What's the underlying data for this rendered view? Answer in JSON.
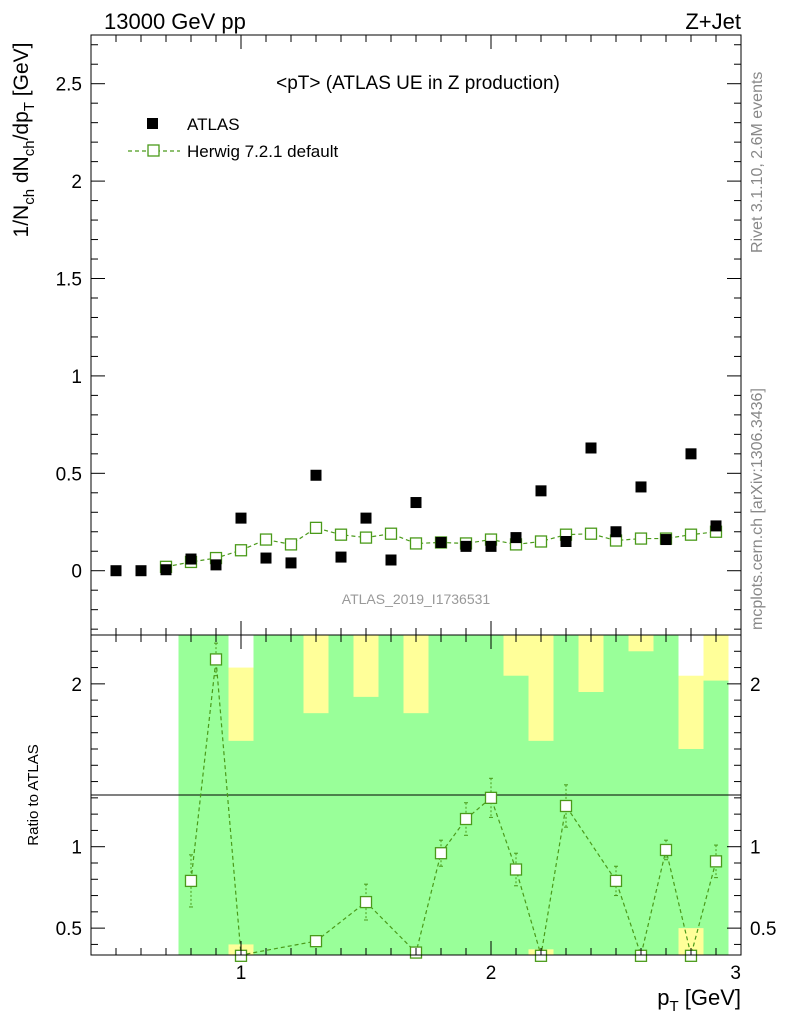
{
  "header": {
    "left": "13000 GeV pp",
    "right": "Z+Jet"
  },
  "side_labels": {
    "top": "Rivet 3.1.10,  2.6M events",
    "bottom": "mcplots.cern.ch [arXiv:1306.3436]"
  },
  "colors": {
    "mc": "#4a9a1a",
    "band_inner": "#99ff99",
    "band_outer": "#ffff99",
    "data": "#000000"
  },
  "chart_data": [
    {
      "type": "scatter",
      "panel": "main",
      "title": "<pT> (ATLAS UE in Z production)",
      "analysis": "ATLAS_2019_I1736531",
      "ylabel_main": "1/N",
      "ylabel_sub1": "ch",
      "ylabel_mid": " dN",
      "ylabel_sub2": "ch",
      "ylabel_mid2": "/dp",
      "ylabel_sub3": "T",
      "ylabel_tail": " [GeV]",
      "xlim": [
        0.4,
        3.0
      ],
      "ylim": [
        -0.33,
        2.75
      ],
      "yticks": [
        0,
        0.5,
        1,
        1.5,
        2,
        2.5
      ],
      "ytick_labels": [
        "0",
        "0.5",
        "1",
        "1.5",
        "2",
        "2.5"
      ],
      "legend_placement": "top-left",
      "series": [
        {
          "name": "ATLAS",
          "marker": "filled-square",
          "x": [
            0.5,
            0.6,
            0.7,
            0.8,
            0.9,
            1.0,
            1.1,
            1.2,
            1.3,
            1.4,
            1.5,
            1.6,
            1.7,
            1.8,
            1.9,
            2.0,
            2.1,
            2.2,
            2.3,
            2.4,
            2.5,
            2.6,
            2.7,
            2.8,
            2.9
          ],
          "y": [
            0.0,
            0.0,
            0.005,
            0.06,
            0.03,
            0.27,
            0.065,
            0.04,
            0.49,
            0.07,
            0.27,
            0.055,
            0.35,
            0.145,
            0.125,
            0.125,
            0.17,
            0.41,
            0.15,
            0.63,
            0.2,
            0.43,
            0.16,
            0.6,
            0.23
          ]
        },
        {
          "name": "Herwig 7.2.1 default",
          "marker": "open-square-dashed",
          "x": [
            0.7,
            0.8,
            0.9,
            1.0,
            1.1,
            1.2,
            1.3,
            1.4,
            1.5,
            1.6,
            1.7,
            1.8,
            1.9,
            2.0,
            2.1,
            2.2,
            2.3,
            2.4,
            2.5,
            2.6,
            2.7,
            2.8,
            2.9
          ],
          "y": [
            0.02,
            0.045,
            0.065,
            0.105,
            0.16,
            0.135,
            0.22,
            0.185,
            0.17,
            0.19,
            0.14,
            0.145,
            0.14,
            0.16,
            0.135,
            0.15,
            0.185,
            0.19,
            0.155,
            0.165,
            0.165,
            0.185,
            0.2
          ]
        }
      ]
    },
    {
      "type": "scatter",
      "panel": "ratio",
      "ylabel": "Ratio to ATLAS",
      "xlabel_main": "p",
      "xlabel_sub": "T",
      "xlabel_tail": " [GeV]",
      "xlim": [
        0.4,
        3.0
      ],
      "ylim": [
        0.335,
        2.3
      ],
      "xticks": [
        1,
        2,
        3
      ],
      "xtick_labels": [
        "1",
        "2",
        "3"
      ],
      "yticks": [
        0.5,
        1,
        2
      ],
      "ytick_labels": [
        "0.5",
        "1",
        "2"
      ],
      "bands": {
        "x_edges": [
          0.75,
          0.85,
          0.95,
          1.05,
          1.15,
          1.25,
          1.35,
          1.45,
          1.55,
          1.65,
          1.75,
          1.85,
          1.95,
          2.05,
          2.15,
          2.25,
          2.35,
          2.45,
          2.55,
          2.65,
          2.75,
          2.85,
          2.95
        ],
        "inner_lo": [
          0.335,
          0.335,
          0.4,
          0.335,
          0.335,
          0.335,
          0.335,
          0.335,
          0.335,
          0.335,
          0.335,
          0.335,
          0.335,
          0.335,
          0.37,
          0.335,
          0.335,
          0.335,
          0.335,
          0.335,
          0.5,
          0.335
        ],
        "inner_hi": [
          2.3,
          2.3,
          1.65,
          2.3,
          2.3,
          1.82,
          2.3,
          1.92,
          2.3,
          1.82,
          2.3,
          2.3,
          2.3,
          2.05,
          1.65,
          2.3,
          1.95,
          2.3,
          2.2,
          2.3,
          1.6,
          2.02
        ],
        "outer_lo": [
          0.335,
          0.335,
          0.335,
          0.335,
          0.335,
          0.335,
          0.335,
          0.335,
          0.335,
          0.335,
          0.335,
          0.335,
          0.335,
          0.335,
          0.335,
          0.335,
          0.335,
          0.335,
          0.335,
          0.335,
          0.335,
          0.335
        ],
        "outer_hi": [
          2.3,
          2.3,
          2.1,
          2.3,
          2.3,
          2.3,
          2.3,
          2.3,
          2.3,
          2.3,
          2.3,
          2.25,
          2.2,
          2.3,
          2.3,
          2.3,
          2.3,
          2.3,
          2.3,
          2.3,
          2.05,
          2.3
        ]
      },
      "series": [
        {
          "name": "Herwig 7.2.1 default",
          "x": [
            0.8,
            0.9,
            1.0,
            1.3,
            1.5,
            1.7,
            1.8,
            1.9,
            2.0,
            2.1,
            2.2,
            2.3,
            2.5,
            2.6,
            2.7,
            2.8,
            2.9
          ],
          "y": [
            0.79,
            2.15,
            0.33,
            0.42,
            0.66,
            0.35,
            0.96,
            1.17,
            1.3,
            0.86,
            0.33,
            1.25,
            0.79,
            0.33,
            0.98,
            0.33,
            0.91
          ],
          "yerr": [
            0.16,
            0.1,
            0.0,
            0.03,
            0.11,
            0.02,
            0.08,
            0.1,
            0.12,
            0.1,
            0.0,
            0.13,
            0.09,
            0.0,
            0.06,
            0.0,
            0.1
          ]
        }
      ]
    }
  ]
}
